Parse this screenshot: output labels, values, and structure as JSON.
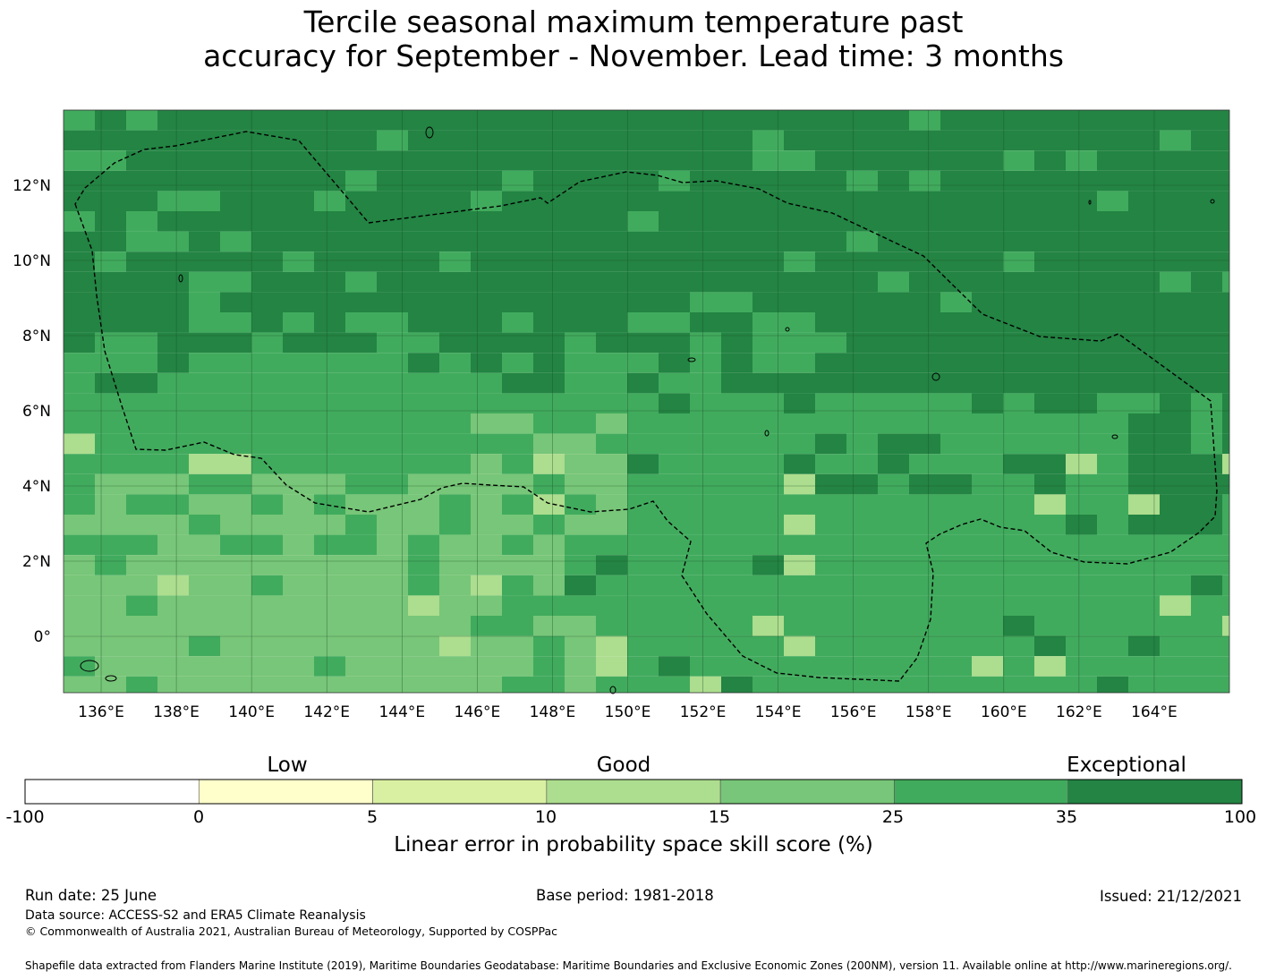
{
  "title": {
    "line1": "Tercile seasonal maximum temperature past",
    "line2": "accuracy for September - November. Lead time: 3 months"
  },
  "map": {
    "lon_ticks": [
      "136°E",
      "138°E",
      "140°E",
      "142°E",
      "144°E",
      "146°E",
      "148°E",
      "150°E",
      "152°E",
      "154°E",
      "156°E",
      "158°E",
      "160°E",
      "162°E",
      "164°E"
    ],
    "lat_ticks": [
      "12°N",
      "10°N",
      "8°N",
      "6°N",
      "4°N",
      "2°N",
      "0°"
    ],
    "lon_values": [
      136,
      138,
      140,
      142,
      144,
      146,
      148,
      150,
      152,
      154,
      156,
      158,
      160,
      162,
      164
    ],
    "lat_values": [
      12,
      10,
      8,
      6,
      4,
      2,
      0
    ],
    "extent": {
      "lon_min": 135,
      "lon_max": 166,
      "lat_min": -1.5,
      "lat_max": 14
    },
    "boundary_style": "dashed EEZ outline",
    "dominant_pattern": "35-100 skill north of ~7°N, 25-35 central, 15-25 in south-west"
  },
  "colorbar": {
    "categories": [
      {
        "label": "Low"
      },
      {
        "label": "Good"
      },
      {
        "label": "Exceptional"
      }
    ],
    "ticks": [
      "-100",
      "0",
      "5",
      "10",
      "15",
      "25",
      "35",
      "100"
    ],
    "colors": [
      "#ffffff",
      "#ffffcc",
      "#d9f0a3",
      "#addd8e",
      "#78c679",
      "#41ab5d",
      "#238443"
    ],
    "label": "Linear error in probability space skill score (%)"
  },
  "footer": {
    "run_date": "Run date: 25 June",
    "base_period": "Base period: 1981-2018",
    "issued": "Issued: 21/12/2021",
    "data_source": "Data source: ACCESS-S2 and ERA5 Climate Reanalysis",
    "copyright": "© Commonwealth of Australia 2021, Australian Bureau of Meteorology, Supported by COSPPac",
    "shapefile": "Shapefile data extracted from Flanders Marine Institute (2019), Maritime Boundaries Geodatabase: Maritime Boundaries and Exclusive Economic Zones (200NM), version 11. Available online at http://www.marineregions.org/."
  }
}
